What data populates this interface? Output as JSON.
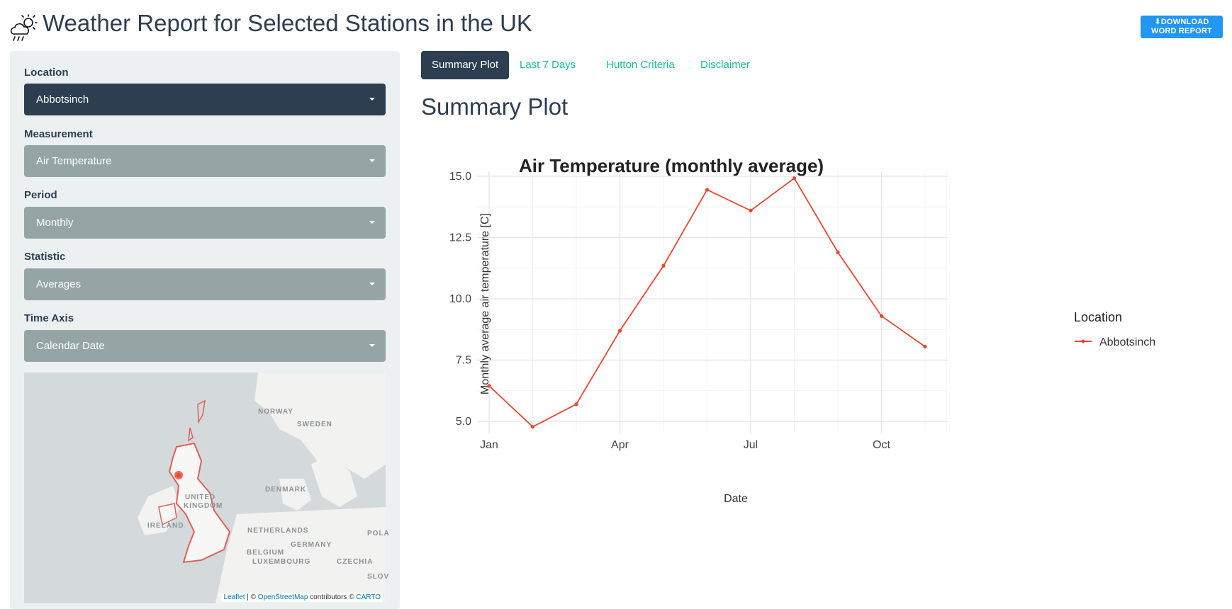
{
  "header": {
    "title": "Weather Report for Selected Stations in the UK",
    "download_label_line1": "DOWNLOAD",
    "download_label_line2": "WORD REPORT",
    "download_icon": "download-icon",
    "app_icon": "rain-sun-cloud-icon"
  },
  "sidebar": {
    "location": {
      "label": "Location",
      "value": "Abbotsinch"
    },
    "measurement": {
      "label": "Measurement",
      "value": "Air Temperature"
    },
    "period": {
      "label": "Period",
      "value": "Monthly"
    },
    "statistic": {
      "label": "Statistic",
      "value": "Averages"
    },
    "time_axis": {
      "label": "Time Axis",
      "value": "Calendar Date"
    },
    "map": {
      "labels": [
        "NORWAY",
        "SWEDEN",
        "DENMARK",
        "UNITED",
        "KINGDOM",
        "IRELAND",
        "NETHERLANDS",
        "GERMANY",
        "BELGIUM",
        "LUXEMBOURG",
        "CZECHIA",
        "POLA",
        "SLOV"
      ],
      "attribution": {
        "leaflet": "Leaflet",
        "sep1": " | © ",
        "osm": "OpenStreetMap",
        "contrib": " contributors © ",
        "carto": "CARTO"
      }
    }
  },
  "tabs": [
    {
      "label": "Summary Plot",
      "active": true
    },
    {
      "label": "Last 7 Days",
      "active": false
    },
    {
      "label": "Hutton Criteria",
      "active": false
    },
    {
      "label": "Disclaimer",
      "active": false
    }
  ],
  "section_title": "Summary Plot",
  "colors": {
    "accent": "#18bc9c",
    "primary": "#2c3e50",
    "muted": "#95a5a6",
    "series": "#e8472f",
    "download": "#2196f3"
  },
  "chart_data": {
    "type": "line",
    "title": "Air Temperature (monthly average)",
    "xlabel": "Date",
    "ylabel": "Monthly average air temperature  [C]",
    "x": [
      "Jan",
      "Feb",
      "Mar",
      "Apr",
      "May",
      "Jun",
      "Jul",
      "Aug",
      "Sep",
      "Oct",
      "Nov"
    ],
    "x_ticks": [
      "Jan",
      "Apr",
      "Jul",
      "Oct"
    ],
    "y_ticks": [
      "5.0",
      "7.5",
      "10.0",
      "12.5",
      "15.0"
    ],
    "ylim": [
      4.8,
      15.2
    ],
    "grid": true,
    "legend_title": "Location",
    "legend_position": "right",
    "series": [
      {
        "name": "Abbotsinch",
        "values": [
          6.45,
          4.78,
          5.7,
          8.7,
          11.35,
          14.45,
          13.6,
          14.92,
          11.9,
          9.3,
          8.05
        ]
      }
    ]
  }
}
